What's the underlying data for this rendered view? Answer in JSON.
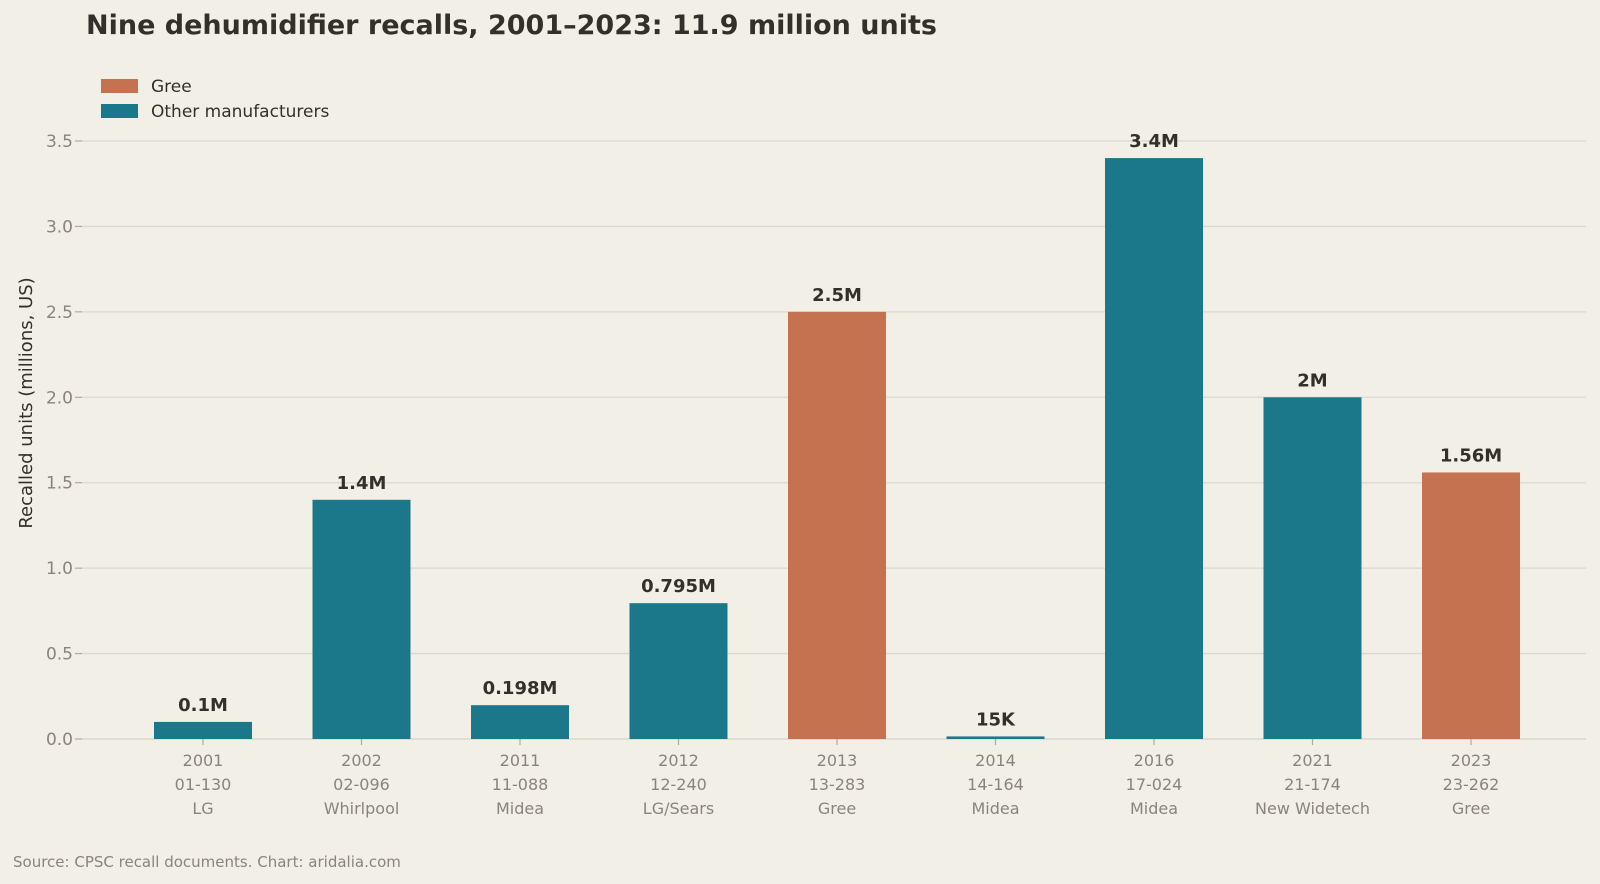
{
  "chart_data": {
    "type": "bar",
    "title": "Nine dehumidifier recalls, 2001–2023: 11.9 million units",
    "ylabel": "Recalled units (millions, US)",
    "xlabel": "",
    "ylim": [
      0,
      3.7
    ],
    "yticks": [
      0.0,
      0.5,
      1.0,
      1.5,
      2.0,
      2.5,
      3.0,
      3.5
    ],
    "ytick_labels": [
      "0.0",
      "0.5",
      "1.0",
      "1.5",
      "2.0",
      "2.5",
      "3.0",
      "3.5"
    ],
    "grid": true,
    "legend": {
      "placement": "top-left",
      "entries": [
        {
          "label": "Gree",
          "color": "#c4724f"
        },
        {
          "label": "Other manufacturers",
          "color": "#1a788a"
        }
      ]
    },
    "categories": [
      {
        "year": "2001",
        "recall_no": "01-130",
        "manufacturer": "LG",
        "value": 0.1,
        "label": "0.1M",
        "group": "Other manufacturers"
      },
      {
        "year": "2002",
        "recall_no": "02-096",
        "manufacturer": "Whirlpool",
        "value": 1.4,
        "label": "1.4M",
        "group": "Other manufacturers"
      },
      {
        "year": "2011",
        "recall_no": "11-088",
        "manufacturer": "Midea",
        "value": 0.198,
        "label": "0.198M",
        "group": "Other manufacturers"
      },
      {
        "year": "2012",
        "recall_no": "12-240",
        "manufacturer": "LG/Sears",
        "value": 0.795,
        "label": "0.795M",
        "group": "Other manufacturers"
      },
      {
        "year": "2013",
        "recall_no": "13-283",
        "manufacturer": "Gree",
        "value": 2.5,
        "label": "2.5M",
        "group": "Gree"
      },
      {
        "year": "2014",
        "recall_no": "14-164",
        "manufacturer": "Midea",
        "value": 0.015,
        "label": "15K",
        "group": "Other manufacturers"
      },
      {
        "year": "2016",
        "recall_no": "17-024",
        "manufacturer": "Midea",
        "value": 3.4,
        "label": "3.4M",
        "group": "Other manufacturers"
      },
      {
        "year": "2021",
        "recall_no": "21-174",
        "manufacturer": "New Widetech",
        "value": 2.0,
        "label": "2M",
        "group": "Other manufacturers"
      },
      {
        "year": "2023",
        "recall_no": "23-262",
        "manufacturer": "Gree",
        "value": 1.56,
        "label": "1.56M",
        "group": "Gree"
      }
    ],
    "source": "Source: CPSC recall documents. Chart: aridalia.com"
  }
}
